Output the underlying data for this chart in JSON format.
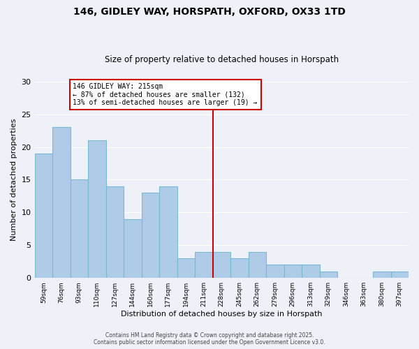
{
  "title": "146, GIDLEY WAY, HORSPATH, OXFORD, OX33 1TD",
  "subtitle": "Size of property relative to detached houses in Horspath",
  "xlabel": "Distribution of detached houses by size in Horspath",
  "ylabel": "Number of detached properties",
  "categories": [
    "59sqm",
    "76sqm",
    "93sqm",
    "110sqm",
    "127sqm",
    "144sqm",
    "160sqm",
    "177sqm",
    "194sqm",
    "211sqm",
    "228sqm",
    "245sqm",
    "262sqm",
    "279sqm",
    "296sqm",
    "313sqm",
    "329sqm",
    "346sqm",
    "363sqm",
    "380sqm",
    "397sqm"
  ],
  "values": [
    19,
    23,
    15,
    21,
    14,
    9,
    13,
    14,
    3,
    4,
    4,
    3,
    4,
    2,
    2,
    2,
    1,
    0,
    0,
    1,
    1
  ],
  "bar_color": "#aecce8",
  "bar_edge_color": "#7ab8d4",
  "vline_index": 9,
  "vline_color": "#cc0000",
  "annotation_text": "146 GIDLEY WAY: 215sqm\n← 87% of detached houses are smaller (132)\n13% of semi-detached houses are larger (19) →",
  "annotation_box_color": "#ffffff",
  "annotation_box_edge": "#cc0000",
  "ylim": [
    0,
    30
  ],
  "yticks": [
    0,
    5,
    10,
    15,
    20,
    25,
    30
  ],
  "background_color": "#eef2f8",
  "plot_bg_color": "#eef2f8",
  "grid_color": "#ffffff",
  "footer_line1": "Contains HM Land Registry data © Crown copyright and database right 2025.",
  "footer_line2": "Contains public sector information licensed under the Open Government Licence v3.0."
}
